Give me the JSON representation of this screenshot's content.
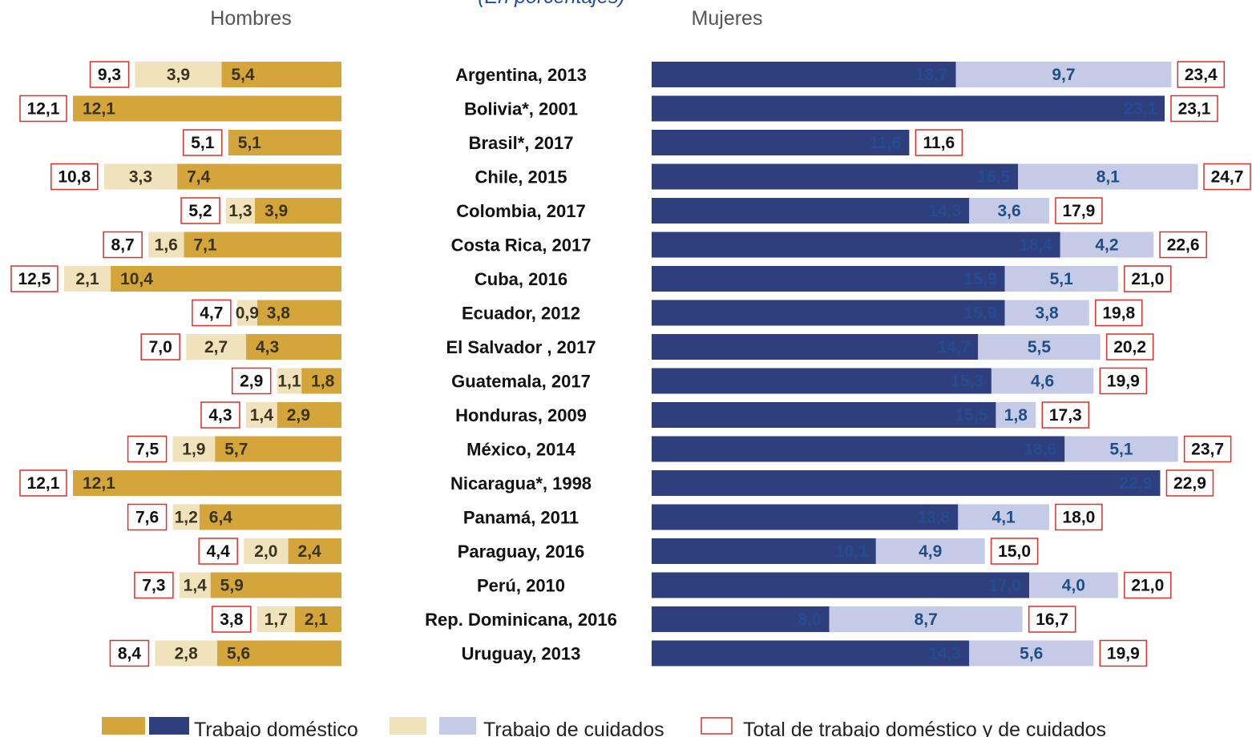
{
  "subtitle": "(En porcentajes)",
  "chart_data": {
    "type": "bar",
    "orientation": "horizontal",
    "stacked": true,
    "panels": [
      {
        "key": "hombres",
        "title": "Hombres"
      },
      {
        "key": "mujeres",
        "title": "Mujeres"
      }
    ],
    "categories": [
      "Argentina, 2013",
      "Bolivia*, 2001",
      "Brasil*, 2017",
      "Chile, 2015",
      "Colombia, 2017",
      "Costa Rica, 2017",
      "Cuba, 2016",
      "Ecuador, 2012",
      "El Salvador , 2017",
      "Guatemala, 2017",
      "Honduras, 2009",
      "México, 2014",
      "Nicaragua*, 1998",
      "Panamá, 2011",
      "Paraguay, 2016",
      "Perú, 2010",
      "Rep. Dominicana, 2016",
      "Uruguay, 2013"
    ],
    "hombres": {
      "domestico": [
        "5,4",
        "12,1",
        "5,1",
        "7,4",
        "3,9",
        "7,1",
        "10,4",
        "3,8",
        "4,3",
        "1,8",
        "2,9",
        "5,7",
        "12,1",
        "6,4",
        "2,4",
        "5,9",
        "2,1",
        "5,6"
      ],
      "cuidados": [
        "3,9",
        "",
        "",
        "3,3",
        "1,3",
        "1,6",
        "2,1",
        "0,9",
        "2,7",
        "1,1",
        "1,4",
        "1,9",
        "",
        "1,2",
        "2,0",
        "1,4",
        "1,7",
        "2,8"
      ],
      "total": [
        "9,3",
        "12,1",
        "5,1",
        "10,8",
        "5,2",
        "8,7",
        "12,5",
        "4,7",
        "7,0",
        "2,9",
        "4,3",
        "7,5",
        "12,1",
        "7,6",
        "4,4",
        "7,3",
        "3,8",
        "8,4"
      ]
    },
    "mujeres": {
      "domestico": [
        "13,7",
        "23,1",
        "11,6",
        "16,5",
        "14,3",
        "18,4",
        "15,9",
        "15,9",
        "14,7",
        "15,3",
        "15,5",
        "18,6",
        "22,9",
        "13,8",
        "10,1",
        "17,0",
        "8,0",
        "14,3"
      ],
      "cuidados": [
        "9,7",
        "",
        "",
        "8,1",
        "3,6",
        "4,2",
        "5,1",
        "3,8",
        "5,5",
        "4,6",
        "1,8",
        "5,1",
        "",
        "4,1",
        "4,9",
        "4,0",
        "8,7",
        "5,6"
      ],
      "total": [
        "23,4",
        "23,1",
        "11,6",
        "24,7",
        "17,9",
        "22,6",
        "21,0",
        "19,8",
        "20,2",
        "19,9",
        "17,3",
        "23,7",
        "22,9",
        "18,0",
        "15,0",
        "21,0",
        "16,7",
        "19,9"
      ]
    },
    "legend": [
      {
        "key": "domestico",
        "label": "Trabajo doméstico"
      },
      {
        "key": "cuidados",
        "label": "Trabajo de cuidados"
      },
      {
        "key": "total",
        "label": "Total de trabajo doméstico y de cuidados"
      }
    ],
    "legend_position": "bottom",
    "grid": false,
    "colors": {
      "hombres_domestico": "#D4A53A",
      "hombres_cuidados": "#F0E2BB",
      "mujeres_domestico": "#2F3F7E",
      "mujeres_cuidados": "#C5CAE6",
      "mujeres_domestico_label": "#244C8F",
      "mujeres_cuidados_label": "#1F4E86",
      "total_border": "#D9302C",
      "label_dark": "#111111",
      "label_hombres": "#3A3320"
    }
  }
}
